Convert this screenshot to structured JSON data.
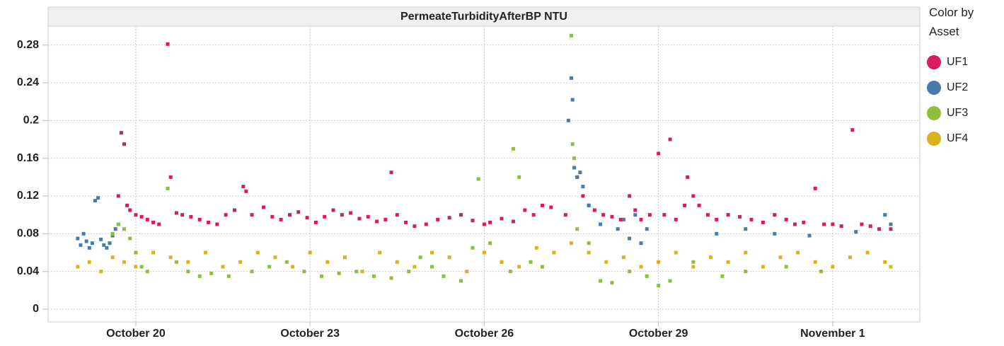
{
  "chart_data": {
    "type": "scatter",
    "title": "PermeateTurbidityAfterBP  NTU",
    "legend_title": "Color by Asset",
    "xlim": [
      18.49,
      33.5
    ],
    "ylim": [
      -0.0135,
      0.3
    ],
    "xticks": [
      {
        "value": 20,
        "label": "October 20"
      },
      {
        "value": 23,
        "label": "October 23"
      },
      {
        "value": 26,
        "label": "October 26"
      },
      {
        "value": 29,
        "label": "October 29"
      },
      {
        "value": 32,
        "label": "November 1"
      }
    ],
    "yticks": [
      0,
      0.04,
      0.08,
      0.12,
      0.16,
      0.2,
      0.24,
      0.28
    ],
    "grid": true,
    "series": [
      {
        "name": "UF1",
        "color": "#d81b60",
        "x": [
          19.7,
          19.75,
          19.8,
          19.85,
          19.9,
          20.0,
          20.1,
          20.2,
          20.3,
          20.4,
          20.55,
          20.6,
          20.7,
          20.8,
          20.95,
          21.1,
          21.25,
          21.4,
          21.55,
          21.7,
          21.85,
          21.9,
          22.0,
          22.2,
          22.35,
          22.5,
          22.65,
          22.8,
          22.95,
          23.1,
          23.25,
          23.4,
          23.55,
          23.7,
          23.85,
          24.0,
          24.15,
          24.3,
          24.4,
          24.5,
          24.65,
          24.8,
          25.0,
          25.2,
          25.4,
          25.6,
          25.8,
          26.0,
          26.1,
          26.3,
          26.5,
          26.7,
          26.85,
          27.0,
          27.15,
          27.4,
          27.55,
          27.6,
          27.7,
          27.8,
          27.9,
          28.05,
          28.2,
          28.35,
          28.5,
          28.6,
          28.7,
          28.85,
          29.0,
          29.1,
          29.2,
          29.3,
          29.45,
          29.5,
          29.6,
          29.7,
          29.85,
          30.0,
          30.2,
          30.4,
          30.6,
          30.8,
          31.0,
          31.2,
          31.35,
          31.5,
          31.7,
          31.85,
          32.0,
          32.15,
          32.34,
          32.5,
          32.65,
          32.8,
          33.0
        ],
        "values": [
          0.12,
          0.187,
          0.175,
          0.11,
          0.105,
          0.1,
          0.098,
          0.095,
          0.092,
          0.09,
          0.281,
          0.14,
          0.102,
          0.1,
          0.098,
          0.095,
          0.092,
          0.09,
          0.1,
          0.105,
          0.13,
          0.125,
          0.1,
          0.108,
          0.098,
          0.095,
          0.1,
          0.103,
          0.097,
          0.092,
          0.098,
          0.105,
          0.1,
          0.102,
          0.096,
          0.098,
          0.093,
          0.095,
          0.145,
          0.1,
          0.092,
          0.088,
          0.09,
          0.095,
          0.097,
          0.1,
          0.094,
          0.09,
          0.092,
          0.096,
          0.093,
          0.105,
          0.1,
          0.11,
          0.108,
          0.1,
          0.15,
          0.14,
          0.12,
          0.11,
          0.105,
          0.1,
          0.098,
          0.095,
          0.12,
          0.105,
          0.095,
          0.1,
          0.165,
          0.1,
          0.18,
          0.095,
          0.11,
          0.14,
          0.12,
          0.11,
          0.1,
          0.095,
          0.1,
          0.098,
          0.095,
          0.092,
          0.1,
          0.095,
          0.09,
          0.092,
          0.128,
          0.09,
          0.09,
          0.088,
          0.19,
          0.09,
          0.088,
          0.085,
          0.085
        ]
      },
      {
        "name": "UF2",
        "color": "#4a7aab",
        "x": [
          19.0,
          19.05,
          19.1,
          19.15,
          19.2,
          19.25,
          19.3,
          19.35,
          19.4,
          19.45,
          19.5,
          19.55,
          19.6,
          19.65,
          19.7,
          27.45,
          27.5,
          27.52,
          27.55,
          27.6,
          27.65,
          27.7,
          27.8,
          28.0,
          28.3,
          28.4,
          28.5,
          28.6,
          28.7,
          28.8,
          30.0,
          30.5,
          31.0,
          31.6,
          32.4,
          32.9,
          33.0
        ],
        "values": [
          0.075,
          0.068,
          0.08,
          0.072,
          0.065,
          0.07,
          0.115,
          0.118,
          0.074,
          0.068,
          0.065,
          0.07,
          0.078,
          0.085,
          0.09,
          0.2,
          0.245,
          0.222,
          0.15,
          0.14,
          0.145,
          0.13,
          0.11,
          0.09,
          0.085,
          0.095,
          0.075,
          0.1,
          0.07,
          0.085,
          0.08,
          0.085,
          0.08,
          0.078,
          0.082,
          0.1,
          0.09
        ]
      },
      {
        "name": "UF3",
        "color": "#8dbf3c",
        "x": [
          19.6,
          19.7,
          19.8,
          19.9,
          20.0,
          20.1,
          20.2,
          20.55,
          20.7,
          20.9,
          21.1,
          21.3,
          21.6,
          22.0,
          22.3,
          22.6,
          22.9,
          23.2,
          23.5,
          23.8,
          24.1,
          24.4,
          24.7,
          24.9,
          25.1,
          25.3,
          25.6,
          25.8,
          25.9,
          26.1,
          26.3,
          26.45,
          26.5,
          26.6,
          26.8,
          27.0,
          27.2,
          27.5,
          27.52,
          27.55,
          27.6,
          27.8,
          28.0,
          28.2,
          28.5,
          28.8,
          29.0,
          29.2,
          29.6,
          30.1,
          30.5,
          31.2,
          31.8
        ],
        "values": [
          0.08,
          0.09,
          0.085,
          0.075,
          0.06,
          0.045,
          0.04,
          0.128,
          0.05,
          0.04,
          0.035,
          0.038,
          0.035,
          0.04,
          0.045,
          0.05,
          0.04,
          0.035,
          0.038,
          0.04,
          0.035,
          0.033,
          0.04,
          0.055,
          0.045,
          0.035,
          0.03,
          0.065,
          0.138,
          0.07,
          0.05,
          0.04,
          0.17,
          0.14,
          0.05,
          0.045,
          0.06,
          0.29,
          0.175,
          0.16,
          0.085,
          0.07,
          0.03,
          0.028,
          0.04,
          0.035,
          0.025,
          0.03,
          0.05,
          0.035,
          0.04,
          0.045,
          0.04
        ]
      },
      {
        "name": "UF4",
        "color": "#d9b31b",
        "x": [
          19.0,
          19.2,
          19.4,
          19.6,
          19.8,
          20.0,
          20.3,
          20.6,
          20.9,
          21.2,
          21.5,
          21.8,
          22.1,
          22.4,
          22.7,
          23.0,
          23.3,
          23.6,
          23.9,
          24.2,
          24.5,
          24.8,
          25.1,
          25.4,
          25.7,
          26.0,
          26.3,
          26.6,
          26.9,
          27.2,
          27.5,
          27.8,
          28.1,
          28.4,
          28.7,
          29.0,
          29.3,
          29.6,
          29.9,
          30.2,
          30.5,
          30.8,
          31.1,
          31.4,
          31.7,
          32.0,
          32.3,
          32.6,
          32.9,
          33.0
        ],
        "values": [
          0.045,
          0.05,
          0.04,
          0.055,
          0.05,
          0.045,
          0.06,
          0.055,
          0.05,
          0.06,
          0.045,
          0.05,
          0.06,
          0.055,
          0.045,
          0.06,
          0.05,
          0.055,
          0.04,
          0.06,
          0.05,
          0.045,
          0.06,
          0.055,
          0.04,
          0.06,
          0.05,
          0.045,
          0.065,
          0.06,
          0.07,
          0.06,
          0.05,
          0.055,
          0.045,
          0.05,
          0.06,
          0.045,
          0.055,
          0.05,
          0.06,
          0.045,
          0.055,
          0.06,
          0.05,
          0.045,
          0.055,
          0.06,
          0.05,
          0.045
        ]
      }
    ]
  }
}
